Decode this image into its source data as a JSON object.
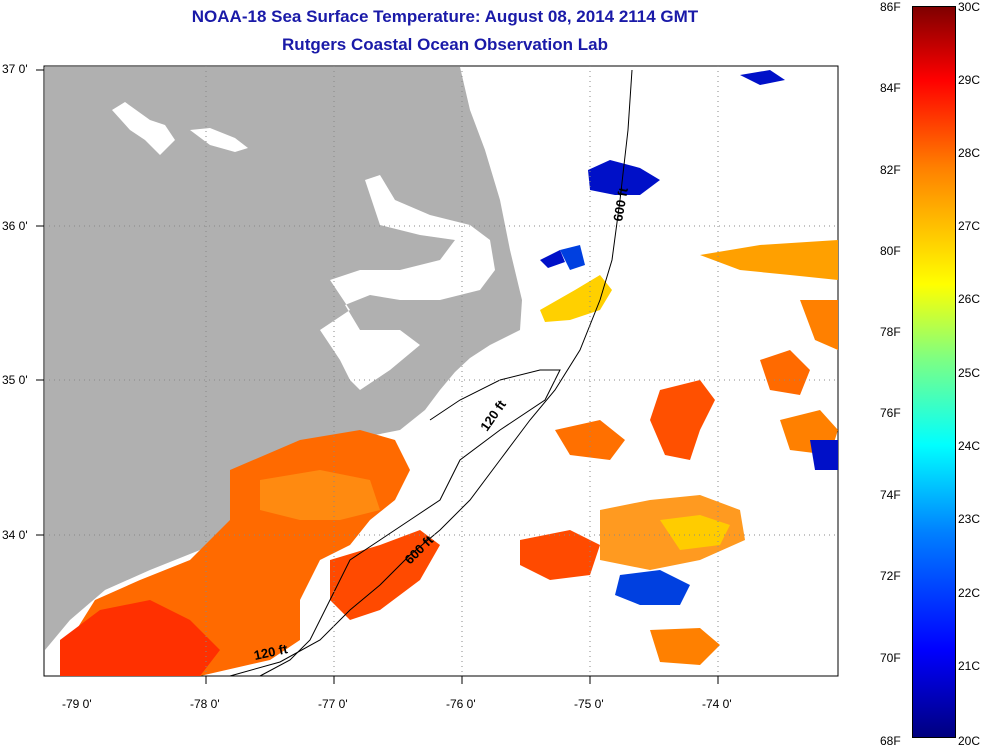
{
  "title": {
    "line1": "NOAA-18 Sea Surface Temperature:  August 08, 2014 2114 GMT",
    "line2": "Rutgers Coastal Ocean Observation Lab"
  },
  "lat_labels": [
    "37 0'",
    "36 0'",
    "35 0'",
    "34 0'"
  ],
  "lon_labels": [
    "-79 0'",
    "-78 0'",
    "-77 0'",
    "-76 0'",
    "-75 0'",
    "-74 0'"
  ],
  "isobath_labels": [
    "600 ft",
    "120 ft",
    "600 ft",
    "120 ft"
  ],
  "colorbar": {
    "fahrenheit": [
      "86F",
      "84F",
      "82F",
      "80F",
      "78F",
      "76F",
      "74F",
      "72F",
      "70F",
      "68F"
    ],
    "celsius": [
      "30C",
      "29C",
      "28C",
      "27C",
      "26C",
      "25C",
      "24C",
      "23C",
      "22C",
      "21C",
      "20C"
    ]
  },
  "colors": {
    "title": "#1a1aa8",
    "land": "#b0b0b0",
    "warm": "#ff6a00",
    "cold": "#0010c8"
  }
}
